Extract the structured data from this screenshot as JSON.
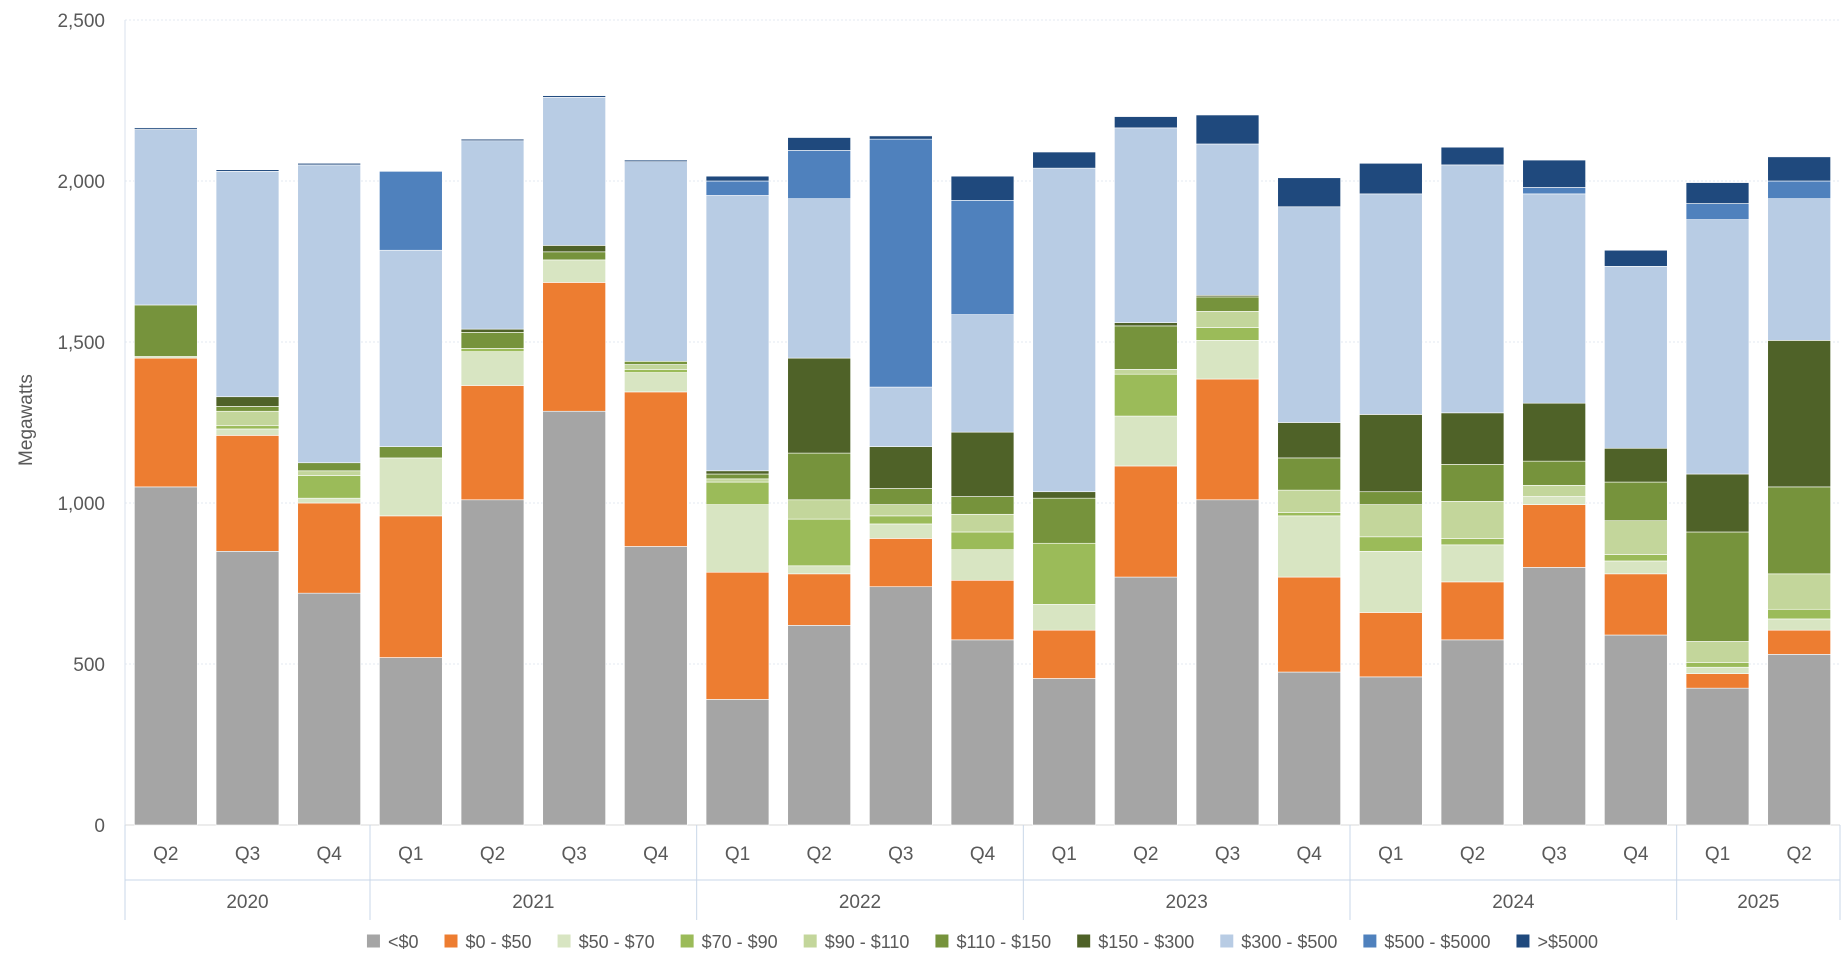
{
  "chart_data": {
    "type": "bar",
    "stacked": true,
    "ylabel": "Megawatts",
    "ylim": [
      0,
      2500
    ],
    "yticks": [
      "0",
      "500",
      "1,000",
      "1,500",
      "2,000",
      "2,500"
    ],
    "grid": true,
    "legend_position": "bottom",
    "categories": [
      "Q2",
      "Q3",
      "Q4",
      "Q1",
      "Q2",
      "Q3",
      "Q4",
      "Q1",
      "Q2",
      "Q3",
      "Q4",
      "Q1",
      "Q2",
      "Q3",
      "Q4",
      "Q1",
      "Q2",
      "Q3",
      "Q4",
      "Q1",
      "Q2"
    ],
    "years": [
      {
        "label": "2020",
        "start": 0,
        "count": 3
      },
      {
        "label": "2021",
        "start": 3,
        "count": 4
      },
      {
        "label": "2022",
        "start": 7,
        "count": 4
      },
      {
        "label": "2023",
        "start": 11,
        "count": 4
      },
      {
        "label": "2024",
        "start": 15,
        "count": 4
      },
      {
        "label": "2025",
        "start": 19,
        "count": 2
      }
    ],
    "series": [
      {
        "name": "<$0",
        "color": "#a5a5a5",
        "values": [
          1050,
          850,
          720,
          520,
          1010,
          1285,
          865,
          390,
          620,
          740,
          575,
          455,
          770,
          1010,
          475,
          460,
          575,
          800,
          590,
          425,
          530
        ]
      },
      {
        "name": "$0 - $50",
        "color": "#ed7d31",
        "values": [
          400,
          360,
          280,
          440,
          355,
          400,
          480,
          395,
          160,
          150,
          185,
          150,
          345,
          375,
          295,
          200,
          180,
          195,
          190,
          45,
          75
        ]
      },
      {
        "name": "$50 - $70",
        "color": "#d8e5c2",
        "values": [
          5,
          20,
          15,
          180,
          105,
          70,
          60,
          210,
          25,
          45,
          95,
          80,
          155,
          120,
          190,
          190,
          115,
          25,
          40,
          20,
          35
        ]
      },
      {
        "name": "$70 - $90",
        "color": "#9bbb59",
        "values": [
          0,
          10,
          70,
          0,
          10,
          0,
          10,
          70,
          145,
          25,
          55,
          190,
          130,
          40,
          10,
          45,
          20,
          0,
          20,
          15,
          30
        ]
      },
      {
        "name": "$90 - $110",
        "color": "#c3d69b",
        "values": [
          0,
          45,
          15,
          0,
          0,
          0,
          15,
          10,
          60,
          35,
          55,
          0,
          15,
          50,
          70,
          100,
          115,
          35,
          105,
          65,
          110
        ]
      },
      {
        "name": "$110 - $150",
        "color": "#76933c",
        "values": [
          160,
          15,
          25,
          35,
          50,
          25,
          10,
          15,
          145,
          50,
          55,
          140,
          135,
          45,
          100,
          40,
          115,
          75,
          120,
          340,
          270
        ]
      },
      {
        "name": "$150 - $300",
        "color": "#4f6228",
        "values": [
          0,
          30,
          0,
          0,
          10,
          20,
          0,
          10,
          295,
          130,
          200,
          20,
          10,
          5,
          110,
          240,
          160,
          180,
          105,
          180,
          455
        ]
      },
      {
        "name": "$300 - $500",
        "color": "#b8cce4",
        "values": [
          545,
          700,
          925,
          610,
          585,
          460,
          620,
          855,
          495,
          185,
          365,
          1005,
          605,
          470,
          670,
          685,
          770,
          650,
          565,
          790,
          440
        ]
      },
      {
        "name": "$500 - $5000",
        "color": "#4f81bd",
        "values": [
          0,
          0,
          0,
          245,
          0,
          0,
          0,
          45,
          150,
          770,
          355,
          0,
          0,
          0,
          0,
          0,
          0,
          20,
          0,
          50,
          55
        ]
      },
      {
        "name": ">$5000",
        "color": "#1f497d",
        "values": [
          5,
          5,
          5,
          0,
          5,
          5,
          5,
          15,
          40,
          10,
          75,
          50,
          35,
          90,
          90,
          95,
          55,
          85,
          50,
          65,
          75
        ]
      }
    ]
  }
}
